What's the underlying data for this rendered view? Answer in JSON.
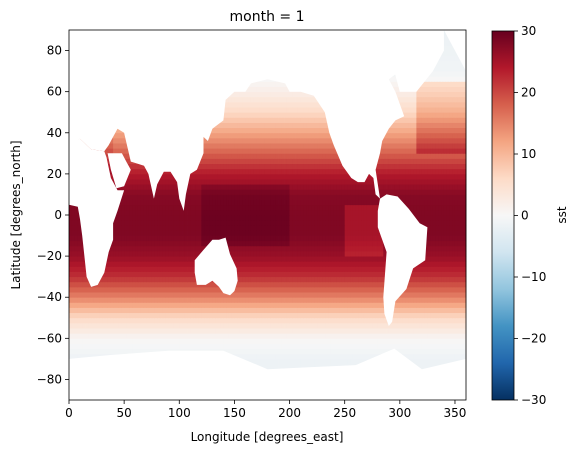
{
  "chart_data": {
    "type": "heatmap",
    "title": "month = 1",
    "xlabel": "Longitude [degrees_east]",
    "ylabel": "Latitude [degrees_north]",
    "xlim": [
      0,
      360
    ],
    "ylim": [
      -90,
      90
    ],
    "xticks": [
      0,
      50,
      100,
      150,
      200,
      250,
      300,
      350
    ],
    "yticks": [
      -80,
      -60,
      -40,
      -20,
      0,
      20,
      40,
      60,
      80
    ],
    "colorbar": {
      "label": "sst",
      "vmin": -30,
      "vmax": 30,
      "ticks": [
        -30,
        -20,
        -10,
        0,
        10,
        20,
        30
      ],
      "colormap": "RdBu_r",
      "stops": [
        "#053061",
        "#2166ac",
        "#4393c3",
        "#92c5de",
        "#d1e5f0",
        "#f7f7f7",
        "#fddbc7",
        "#f4a582",
        "#d6604d",
        "#b2182b",
        "#67001f"
      ]
    },
    "land_color": "#ffffff",
    "grid": false,
    "field": {
      "lon_step": 2.5,
      "lat_step": 2.5,
      "sst_by_latitude": [
        {
          "lat": -90,
          "sst": -1.8
        },
        {
          "lat": -70,
          "sst": -1.5
        },
        {
          "lat": -60,
          "sst": 0.5
        },
        {
          "lat": -50,
          "sst": 6
        },
        {
          "lat": -40,
          "sst": 15
        },
        {
          "lat": -30,
          "sst": 22
        },
        {
          "lat": -20,
          "sst": 26
        },
        {
          "lat": -10,
          "sst": 28
        },
        {
          "lat": 0,
          "sst": 28
        },
        {
          "lat": 10,
          "sst": 27.5
        },
        {
          "lat": 20,
          "sst": 24
        },
        {
          "lat": 30,
          "sst": 18
        },
        {
          "lat": 40,
          "sst": 12
        },
        {
          "lat": 50,
          "sst": 6
        },
        {
          "lat": 60,
          "sst": 2
        },
        {
          "lat": 70,
          "sst": -1
        },
        {
          "lat": 90,
          "sst": -1.8
        }
      ]
    }
  }
}
